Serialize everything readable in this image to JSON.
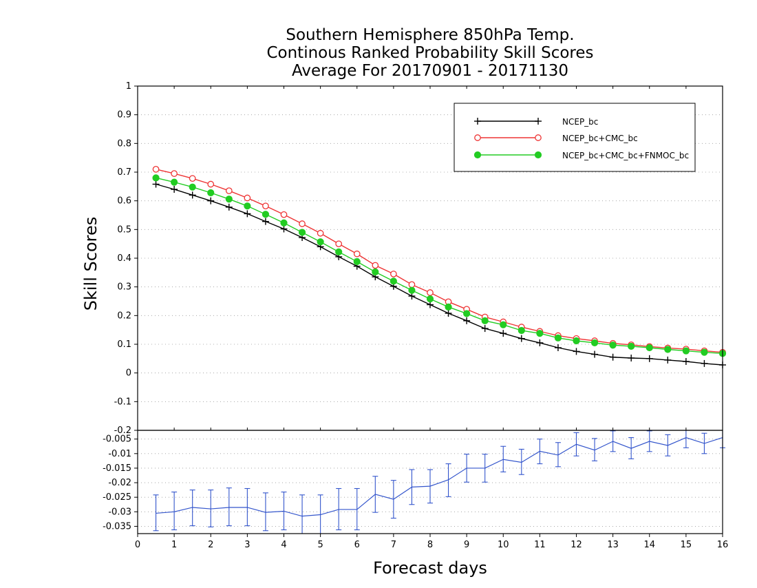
{
  "chart_data": [
    {
      "type": "line",
      "title": [
        "Southern Hemisphere 850hPa Temp.",
        "Continous Ranked Probability Skill Scores",
        "Average For 20170901 - 20171130"
      ],
      "ylabel": "Skill Scores",
      "xlabel": "Forecast days",
      "xlim": [
        0,
        16
      ],
      "ylim": [
        -0.2,
        1
      ],
      "yticks": [
        -0.2,
        -0.1,
        0,
        0.1,
        0.2,
        0.3,
        0.4,
        0.5,
        0.6,
        0.7,
        0.8,
        0.9,
        1
      ],
      "ytick_labels": [
        "-0.2",
        "-0.1",
        "0",
        "0.1",
        "0.2",
        "0.3",
        "0.4",
        "0.5",
        "0.6",
        "0.7",
        "0.8",
        "0.9",
        "1"
      ],
      "grid": true,
      "legend_position": "top-right",
      "x": [
        0.5,
        1,
        1.5,
        2,
        2.5,
        3,
        3.5,
        4,
        4.5,
        5,
        5.5,
        6,
        6.5,
        7,
        7.5,
        8,
        8.5,
        9,
        9.5,
        10,
        10.5,
        11,
        11.5,
        12,
        12.5,
        13,
        13.5,
        14,
        14.5,
        15,
        15.5,
        16
      ],
      "series": [
        {
          "name": "NCEP_bc",
          "color": "#000000",
          "marker": "plus",
          "values": [
            0.658,
            0.64,
            0.62,
            0.6,
            0.578,
            0.555,
            0.528,
            0.502,
            0.472,
            0.44,
            0.405,
            0.372,
            0.335,
            0.302,
            0.268,
            0.238,
            0.208,
            0.182,
            0.155,
            0.138,
            0.12,
            0.105,
            0.088,
            0.075,
            0.065,
            0.055,
            0.052,
            0.05,
            0.045,
            0.04,
            0.033,
            0.028
          ]
        },
        {
          "name": "NCEP_bc+CMC_bc",
          "color": "#ee3333",
          "marker": "open-circle",
          "values": [
            0.71,
            0.695,
            0.678,
            0.658,
            0.635,
            0.61,
            0.582,
            0.552,
            0.52,
            0.487,
            0.45,
            0.415,
            0.375,
            0.345,
            0.308,
            0.28,
            0.248,
            0.222,
            0.195,
            0.178,
            0.16,
            0.145,
            0.13,
            0.12,
            0.112,
            0.103,
            0.098,
            0.092,
            0.087,
            0.083,
            0.077,
            0.072
          ]
        },
        {
          "name": "NCEP_bc+CMC_bc+FNMOC_bc",
          "color": "#22cc22",
          "marker": "filled-circle",
          "values": [
            0.68,
            0.665,
            0.648,
            0.628,
            0.606,
            0.582,
            0.553,
            0.523,
            0.49,
            0.457,
            0.422,
            0.388,
            0.352,
            0.32,
            0.288,
            0.258,
            0.23,
            0.207,
            0.182,
            0.168,
            0.148,
            0.138,
            0.122,
            0.112,
            0.105,
            0.097,
            0.093,
            0.088,
            0.082,
            0.077,
            0.072,
            0.068
          ]
        }
      ]
    },
    {
      "type": "line",
      "xlim": [
        0,
        16
      ],
      "ylim": [
        -0.0375,
        -0.002
      ],
      "xticks": [
        0,
        1,
        2,
        3,
        4,
        5,
        6,
        7,
        8,
        9,
        10,
        11,
        12,
        13,
        14,
        15,
        16
      ],
      "xtick_labels": [
        "0",
        "1",
        "2",
        "3",
        "4",
        "5",
        "6",
        "7",
        "8",
        "9",
        "10",
        "11",
        "12",
        "13",
        "14",
        "15",
        "16"
      ],
      "yticks": [
        -0.005,
        -0.01,
        -0.015,
        -0.02,
        -0.025,
        -0.03,
        -0.035
      ],
      "ytick_labels": [
        "-0.005",
        "-0.01",
        "-0.015",
        "-0.02",
        "-0.025",
        "-0.03",
        "-0.035"
      ],
      "grid": true,
      "error_bars": true,
      "x": [
        0.5,
        1,
        1.5,
        2,
        2.5,
        3,
        3.5,
        4,
        4.5,
        5,
        5.5,
        6,
        6.5,
        7,
        7.5,
        8,
        8.5,
        9,
        9.5,
        10,
        10.5,
        11,
        11.5,
        12,
        12.5,
        13,
        13.5,
        14,
        14.5,
        15,
        15.5,
        16
      ],
      "series": [
        {
          "color": "#3355cc",
          "values": [
            -0.0305,
            -0.03,
            -0.0285,
            -0.029,
            -0.0285,
            -0.0285,
            -0.0302,
            -0.0298,
            -0.0315,
            -0.031,
            -0.0292,
            -0.0292,
            -0.024,
            -0.0257,
            -0.0215,
            -0.0212,
            -0.019,
            -0.015,
            -0.015,
            -0.012,
            -0.013,
            -0.0092,
            -0.0105,
            -0.0068,
            -0.0088,
            -0.0058,
            -0.0082,
            -0.0058,
            -0.0072,
            -0.0045,
            -0.0065,
            -0.0045
          ],
          "error_low": [
            -0.0365,
            -0.0362,
            -0.0348,
            -0.0352,
            -0.0348,
            -0.0348,
            -0.0365,
            -0.0362,
            -0.038,
            -0.038,
            -0.0362,
            -0.0362,
            -0.0302,
            -0.0322,
            -0.0275,
            -0.027,
            -0.0248,
            -0.0198,
            -0.0198,
            -0.0163,
            -0.0172,
            -0.0135,
            -0.0145,
            -0.0108,
            -0.0125,
            -0.0093,
            -0.0118,
            -0.0093,
            -0.0108,
            -0.008,
            -0.01,
            -0.008
          ],
          "error_high": [
            -0.0242,
            -0.0232,
            -0.0225,
            -0.0225,
            -0.0218,
            -0.022,
            -0.0235,
            -0.0232,
            -0.0242,
            -0.0242,
            -0.022,
            -0.022,
            -0.0178,
            -0.0192,
            -0.0155,
            -0.0155,
            -0.0135,
            -0.0102,
            -0.0102,
            -0.0075,
            -0.0085,
            -0.005,
            -0.0062,
            -0.0028,
            -0.0048,
            -0.0022,
            -0.0045,
            -0.0022,
            -0.0035,
            -0.001,
            -0.003,
            -0.001
          ]
        }
      ]
    }
  ]
}
